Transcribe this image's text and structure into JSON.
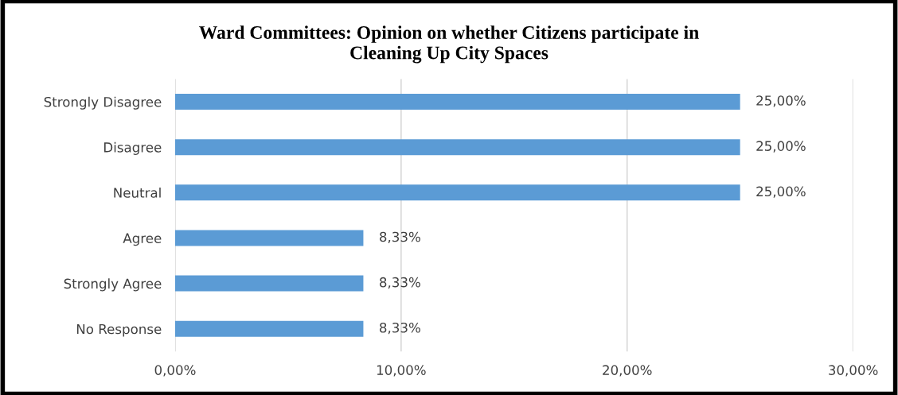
{
  "chart_data": {
    "type": "bar",
    "orientation": "horizontal",
    "title": "Ward Committees: Opinion on whether Citizens participate in\nCleaning Up City Spaces",
    "categories": [
      "Strongly Disagree",
      "Disagree",
      "Neutral",
      "Agree",
      "Strongly Agree",
      "No Response"
    ],
    "values": [
      25.0,
      25.0,
      25.0,
      8.33,
      8.33,
      8.33
    ],
    "value_labels": [
      "25,00%",
      "25,00%",
      "25,00%",
      "8,33%",
      "8,33%",
      "8,33%"
    ],
    "color": "#5b9bd5",
    "xlim": [
      0,
      30
    ],
    "xticks": [
      {
        "value": 0,
        "label": "0,00%"
      },
      {
        "value": 10,
        "label": "10,00%"
      },
      {
        "value": 20,
        "label": "20,00%"
      },
      {
        "value": 30,
        "label": "30,00%"
      }
    ],
    "grid": "x",
    "legend": false
  }
}
